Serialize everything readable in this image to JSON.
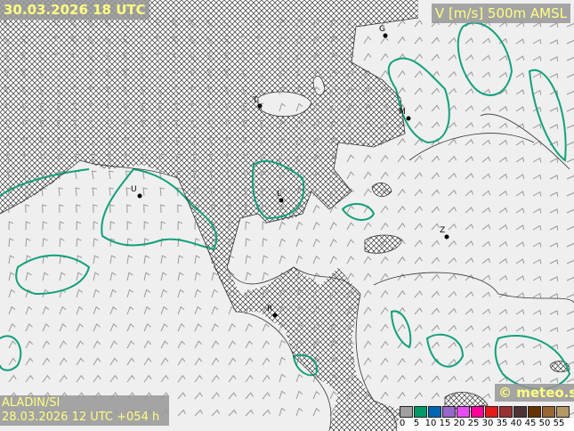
{
  "header": {
    "valid_time": "30.03.2026 18 UTC",
    "parameter": "V [m/s] 500m AMSL"
  },
  "footer": {
    "model": "ALADIN/SI",
    "run": "28.03.2026 12 UTC +054 h",
    "brand": "© meteo.si"
  },
  "legend": {
    "ticks": [
      "0",
      "5",
      "10",
      "15",
      "20",
      "25",
      "30",
      "35",
      "40",
      "45",
      "50",
      "55"
    ],
    "colors": [
      "#a0a0a0",
      "#009966",
      "#0066b3",
      "#9966cc",
      "#e64cf0",
      "#ff0099",
      "#e61919",
      "#993333",
      "#4d3333",
      "#663300",
      "#996633",
      "#b39966"
    ]
  },
  "cities": [
    {
      "label": "G"
    },
    {
      "label": "T"
    },
    {
      "label": "M"
    },
    {
      "label": "U"
    },
    {
      "label": "L"
    },
    {
      "label": "Z"
    },
    {
      "label": "R"
    }
  ],
  "colors": {
    "contour": "#12a07a",
    "land": "#efefef",
    "label_text": "#ffff80"
  }
}
